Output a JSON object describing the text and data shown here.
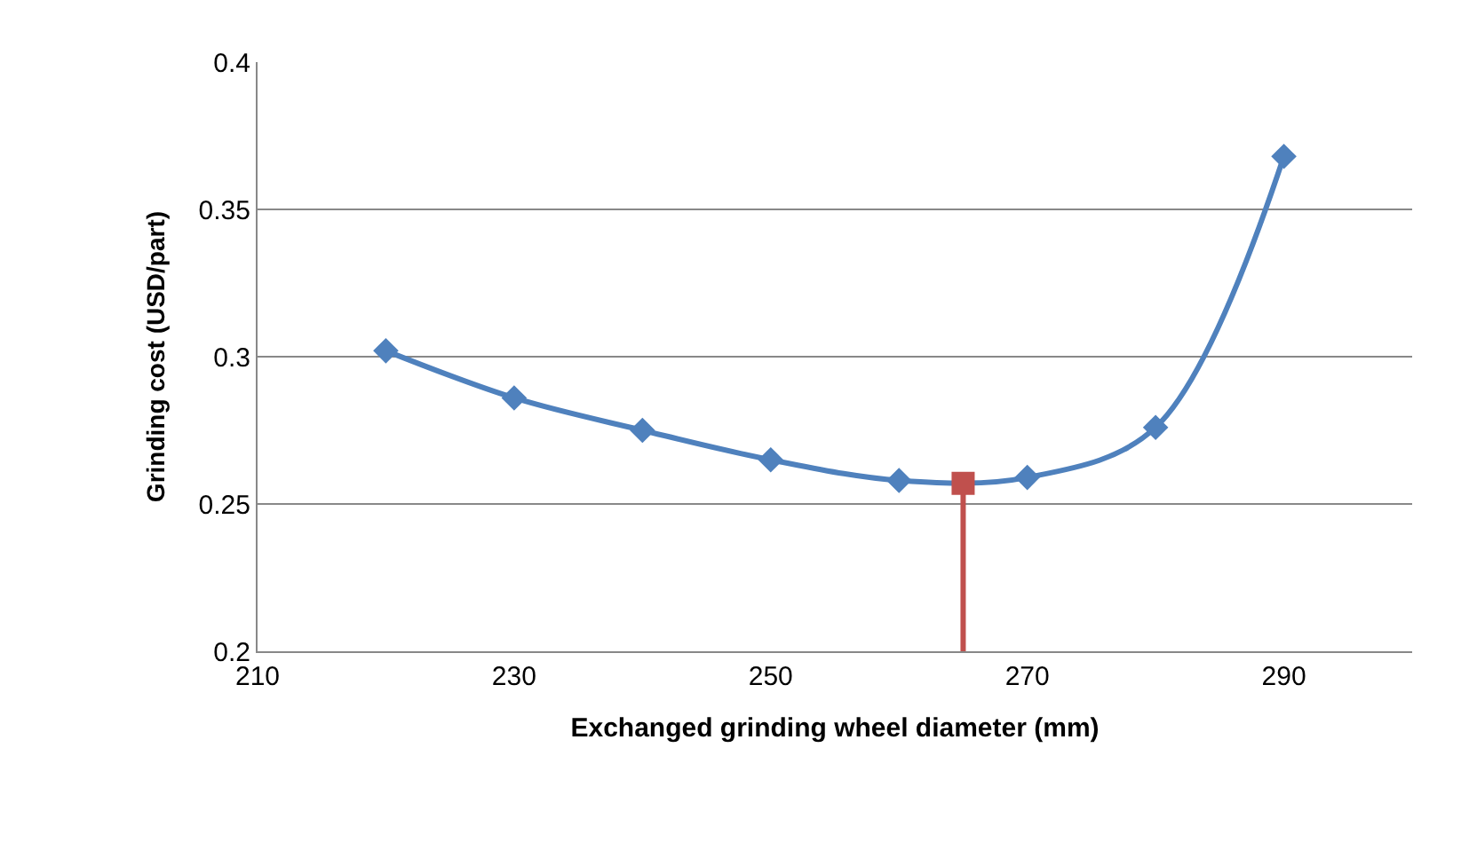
{
  "chart_data": {
    "type": "line",
    "xlabel": "Exchanged grinding wheel diameter (mm)",
    "ylabel": "Grinding cost (USD/part)",
    "xlim": [
      210,
      300
    ],
    "xticks": [
      210,
      230,
      250,
      270,
      290
    ],
    "ylim": [
      0.2,
      0.4
    ],
    "yticks": [
      0.2,
      0.25,
      0.3,
      0.35,
      0.4
    ],
    "grid": "y",
    "legend": false,
    "series": [
      {
        "color": "#4f81bd",
        "marker": "diamond",
        "x": [
          220,
          230,
          240,
          250,
          260,
          270,
          280,
          290
        ],
        "values": [
          0.302,
          0.286,
          0.275,
          0.265,
          0.258,
          0.259,
          0.276,
          0.368
        ]
      },
      {
        "type": "lollipop",
        "color": "#c0504d",
        "marker": "square",
        "x": [
          265
        ],
        "values": [
          0.257
        ]
      }
    ]
  }
}
